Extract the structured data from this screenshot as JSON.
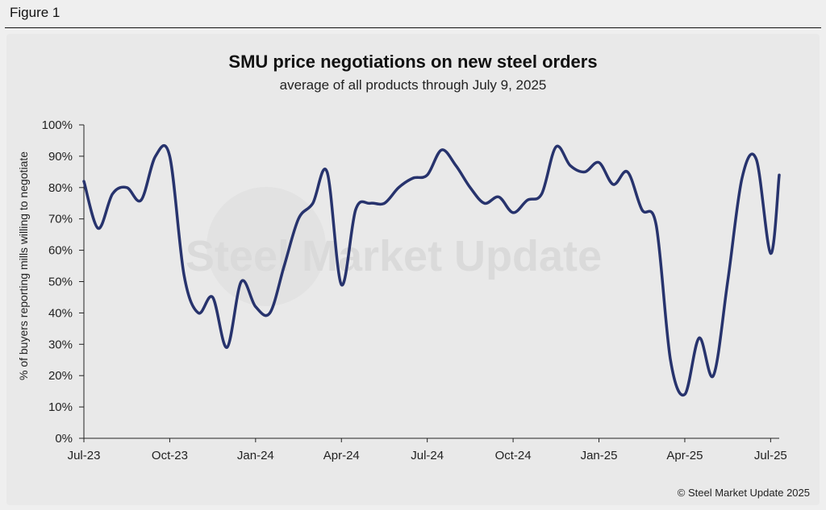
{
  "figure_label": "Figure 1",
  "copyright": "© Steel Market Update 2025",
  "watermark": "Steel Market Update",
  "colors": {
    "line": "#27336d",
    "axis": "#222222",
    "background": "#efefef",
    "panel": "#e9e9e9"
  },
  "chart_data": {
    "type": "line",
    "title": "SMU price negotiations on new steel orders",
    "subtitle": "average of all products through July 9, 2025",
    "ylabel": "% of buyers reporting mills willing to negotiate",
    "xlabel": "",
    "ylim": [
      0,
      100
    ],
    "yticks": [
      0,
      10,
      20,
      30,
      40,
      50,
      60,
      70,
      80,
      90,
      100
    ],
    "ytick_labels": [
      "0%",
      "10%",
      "20%",
      "30%",
      "40%",
      "50%",
      "60%",
      "70%",
      "80%",
      "90%",
      "100%"
    ],
    "xlim": [
      0,
      24.3
    ],
    "xticks": [
      0,
      3,
      6,
      9,
      12,
      15,
      18,
      21,
      24
    ],
    "xtick_labels": [
      "Jul-23",
      "Oct-23",
      "Jan-24",
      "Apr-24",
      "Jul-24",
      "Oct-24",
      "Jan-25",
      "Apr-25",
      "Jul-25"
    ],
    "x_unit": "months since Jul-23",
    "series": [
      {
        "name": "average of all products",
        "x": [
          0,
          0.5,
          1.0,
          1.5,
          2.0,
          2.5,
          3.0,
          3.5,
          4.0,
          4.5,
          5.0,
          5.5,
          6.0,
          6.5,
          7.0,
          7.5,
          8.0,
          8.5,
          9.0,
          9.5,
          10.0,
          10.5,
          11.0,
          11.5,
          12.0,
          12.5,
          13.0,
          13.5,
          14.0,
          14.5,
          15.0,
          15.5,
          16.0,
          16.5,
          17.0,
          17.5,
          18.0,
          18.5,
          19.0,
          19.5,
          20.0,
          20.5,
          21.0,
          21.5,
          22.0,
          22.5,
          23.0,
          23.5,
          24.0,
          24.3
        ],
        "values": [
          82,
          67,
          78,
          80,
          76,
          90,
          90,
          52,
          40,
          45,
          29,
          50,
          42,
          40,
          55,
          70,
          75,
          85,
          49,
          73,
          75,
          75,
          80,
          83,
          84,
          92,
          87,
          80,
          75,
          77,
          72,
          76,
          78,
          93,
          87,
          85,
          88,
          81,
          85,
          73,
          68,
          25,
          14,
          32,
          20,
          50,
          83,
          89,
          59,
          84
        ]
      }
    ]
  }
}
